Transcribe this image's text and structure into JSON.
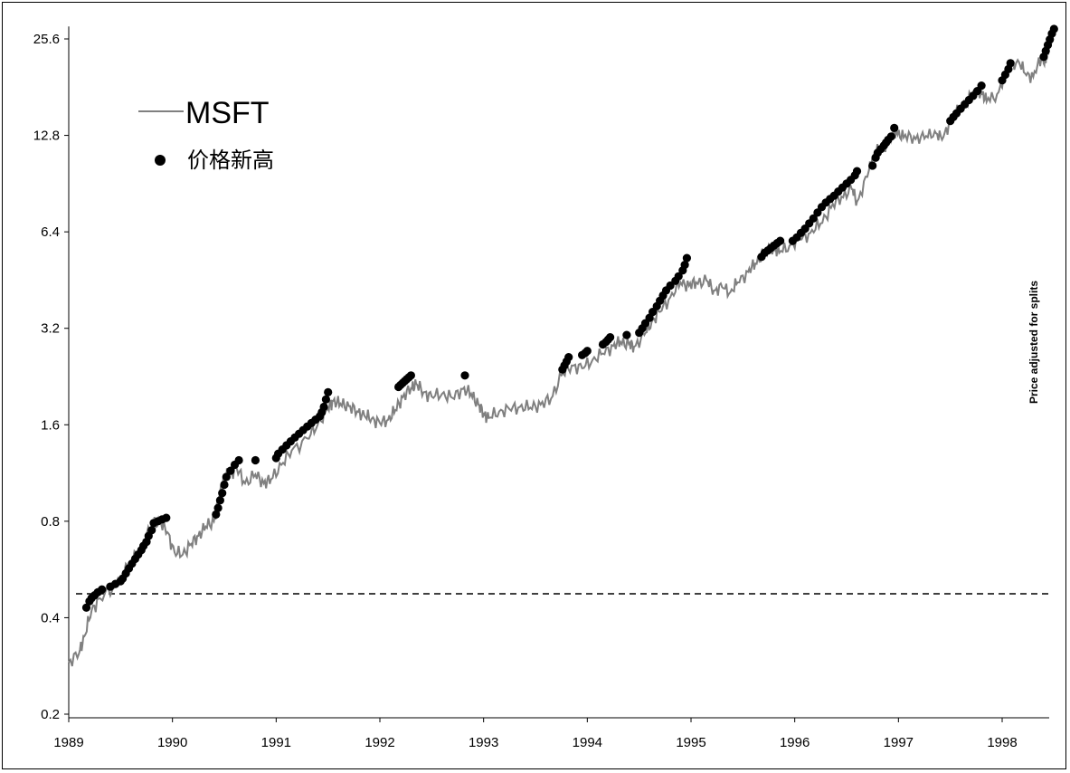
{
  "chart_data": {
    "type": "line",
    "y_scale": "log2",
    "ylim": [
      0.2,
      28
    ],
    "xlim": [
      1989.0,
      1998.55
    ],
    "x_ticks": [
      "1989",
      "1990",
      "1991",
      "1992",
      "1993",
      "1994",
      "1995",
      "1996",
      "1997",
      "1998"
    ],
    "y_ticks": [
      "0.2",
      "0.4",
      "0.8",
      "1.6",
      "3.2",
      "6.4",
      "12.8",
      "25.6"
    ],
    "reference_line": {
      "y": 0.475,
      "style": "dashed"
    },
    "side_annotation": "Price adjusted for splits",
    "legend": {
      "placement": "top-left",
      "series_label": "MSFT",
      "marker_label": "价格新高"
    },
    "colors": {
      "series": "#808080",
      "markers": "#000000",
      "axis": "#000000",
      "reference_line": "#000000"
    },
    "series": [
      {
        "name": "MSFT",
        "x": [
          1989.0,
          1989.1,
          1989.15,
          1989.22,
          1989.3,
          1989.45,
          1989.6,
          1989.7,
          1989.8,
          1989.88,
          1989.95,
          1990.02,
          1990.1,
          1990.18,
          1990.25,
          1990.32,
          1990.4,
          1990.45,
          1990.5,
          1990.55,
          1990.62,
          1990.7,
          1990.8,
          1990.88,
          1990.95,
          1991.05,
          1991.15,
          1991.3,
          1991.4,
          1991.5,
          1991.55,
          1991.62,
          1991.7,
          1991.78,
          1991.85,
          1991.92,
          1992.0,
          1992.08,
          1992.15,
          1992.22,
          1992.3,
          1992.35,
          1992.42,
          1992.5,
          1992.6,
          1992.7,
          1992.8,
          1992.88,
          1992.95,
          1993.0,
          1993.05,
          1993.15,
          1993.25,
          1993.35,
          1993.45,
          1993.55,
          1993.65,
          1993.75,
          1993.85,
          1993.95,
          1994.05,
          1994.15,
          1994.25,
          1994.32,
          1994.4,
          1994.45,
          1994.55,
          1994.62,
          1994.7,
          1994.8,
          1994.9,
          1994.98,
          1995.05,
          1995.15,
          1995.22,
          1995.3,
          1995.38,
          1995.45,
          1995.55,
          1995.62,
          1995.7,
          1995.8,
          1995.85,
          1995.95,
          1996.05,
          1996.15,
          1996.25,
          1996.35,
          1996.45,
          1996.55,
          1996.6,
          1996.7,
          1996.75,
          1996.82,
          1996.9,
          1996.98,
          1997.05,
          1997.15,
          1997.25,
          1997.35,
          1997.42,
          1997.5,
          1997.6,
          1997.7,
          1997.8,
          1997.85,
          1997.95,
          1998.05,
          1998.15,
          1998.22,
          1998.3,
          1998.38,
          1998.42,
          1998.45,
          1998.5
        ],
        "values": [
          0.29,
          0.31,
          0.35,
          0.42,
          0.46,
          0.5,
          0.6,
          0.66,
          0.78,
          0.8,
          0.74,
          0.64,
          0.63,
          0.68,
          0.72,
          0.77,
          0.8,
          0.95,
          1.1,
          1.12,
          1.17,
          1.05,
          1.12,
          1.05,
          1.08,
          1.2,
          1.33,
          1.45,
          1.6,
          1.8,
          1.9,
          1.86,
          1.83,
          1.76,
          1.71,
          1.67,
          1.62,
          1.66,
          1.78,
          1.95,
          2.08,
          2.15,
          2.02,
          1.96,
          2.0,
          1.94,
          2.07,
          2.0,
          1.85,
          1.73,
          1.68,
          1.76,
          1.79,
          1.82,
          1.81,
          1.85,
          1.93,
          2.28,
          2.45,
          2.4,
          2.55,
          2.67,
          2.82,
          2.9,
          2.86,
          2.8,
          3.05,
          3.35,
          3.6,
          4.0,
          4.45,
          4.35,
          4.45,
          4.5,
          4.2,
          4.3,
          4.15,
          4.45,
          4.8,
          5.1,
          5.5,
          5.75,
          5.5,
          5.8,
          6.05,
          6.35,
          6.8,
          7.6,
          8.25,
          8.7,
          7.95,
          9.5,
          11.0,
          11.6,
          12.2,
          13.2,
          12.6,
          12.7,
          12.5,
          13.2,
          12.4,
          14.2,
          15.6,
          17.0,
          17.7,
          16.3,
          17.2,
          20.5,
          22.0,
          20.0,
          19.5,
          22.5,
          21.5,
          24.6,
          27.0
        ]
      },
      {
        "name": "价格新高",
        "x": [
          1989.17,
          1989.2,
          1989.22,
          1989.25,
          1989.28,
          1989.32,
          1989.4,
          1989.45,
          1989.5,
          1989.52,
          1989.55,
          1989.58,
          1989.61,
          1989.64,
          1989.67,
          1989.7,
          1989.72,
          1989.75,
          1989.77,
          1989.8,
          1989.82,
          1989.86,
          1989.9,
          1989.94,
          1990.42,
          1990.44,
          1990.46,
          1990.48,
          1990.5,
          1990.52,
          1990.56,
          1990.6,
          1990.64,
          1990.8,
          1991.0,
          1991.02,
          1991.06,
          1991.1,
          1991.14,
          1991.18,
          1991.22,
          1991.26,
          1991.3,
          1991.34,
          1991.38,
          1991.42,
          1991.44,
          1991.46,
          1991.48,
          1991.5,
          1992.18,
          1992.2,
          1992.22,
          1992.24,
          1992.26,
          1992.28,
          1992.3,
          1992.82,
          1993.76,
          1993.78,
          1993.8,
          1993.82,
          1993.95,
          1993.98,
          1994.0,
          1994.15,
          1994.18,
          1994.2,
          1994.22,
          1994.38,
          1994.5,
          1994.53,
          1994.56,
          1994.6,
          1994.63,
          1994.67,
          1994.7,
          1994.73,
          1994.76,
          1994.8,
          1994.85,
          1994.88,
          1994.92,
          1994.94,
          1994.96,
          1995.68,
          1995.71,
          1995.74,
          1995.77,
          1995.8,
          1995.83,
          1995.86,
          1995.98,
          1996.02,
          1996.06,
          1996.1,
          1996.14,
          1996.18,
          1996.22,
          1996.26,
          1996.3,
          1996.34,
          1996.38,
          1996.42,
          1996.46,
          1996.5,
          1996.54,
          1996.58,
          1996.6,
          1996.75,
          1996.78,
          1996.8,
          1996.83,
          1996.86,
          1996.88,
          1996.9,
          1996.93,
          1996.96,
          1997.5,
          1997.53,
          1997.56,
          1997.6,
          1997.64,
          1997.68,
          1997.72,
          1997.76,
          1997.8,
          1998.0,
          1998.03,
          1998.06,
          1998.08,
          1998.4,
          1998.42,
          1998.44,
          1998.46,
          1998.48,
          1998.5
        ],
        "values": [
          0.43,
          0.45,
          0.46,
          0.47,
          0.48,
          0.49,
          0.5,
          0.51,
          0.52,
          0.53,
          0.55,
          0.57,
          0.59,
          0.61,
          0.63,
          0.65,
          0.67,
          0.69,
          0.72,
          0.75,
          0.79,
          0.8,
          0.81,
          0.82,
          0.84,
          0.88,
          0.93,
          0.98,
          1.04,
          1.1,
          1.15,
          1.2,
          1.24,
          1.24,
          1.26,
          1.3,
          1.34,
          1.38,
          1.42,
          1.46,
          1.5,
          1.54,
          1.58,
          1.62,
          1.66,
          1.7,
          1.75,
          1.82,
          1.92,
          2.02,
          2.1,
          2.13,
          2.16,
          2.19,
          2.22,
          2.25,
          2.28,
          2.28,
          2.38,
          2.45,
          2.52,
          2.6,
          2.64,
          2.68,
          2.72,
          2.85,
          2.9,
          2.95,
          3.0,
          3.05,
          3.1,
          3.2,
          3.32,
          3.45,
          3.6,
          3.75,
          3.9,
          4.05,
          4.2,
          4.35,
          4.5,
          4.65,
          4.85,
          5.05,
          5.3,
          5.35,
          5.5,
          5.6,
          5.7,
          5.8,
          5.9,
          6.0,
          6.0,
          6.15,
          6.35,
          6.55,
          6.8,
          7.05,
          7.35,
          7.65,
          7.9,
          8.1,
          8.3,
          8.55,
          8.8,
          9.05,
          9.3,
          9.6,
          9.9,
          10.3,
          10.9,
          11.3,
          11.6,
          11.9,
          12.15,
          12.4,
          12.7,
          13.5,
          14.2,
          14.6,
          15.0,
          15.5,
          16.0,
          16.5,
          17.0,
          17.6,
          18.3,
          19.0,
          19.8,
          20.6,
          21.5,
          22.5,
          23.5,
          24.5,
          25.5,
          26.6,
          27.5
        ]
      }
    ]
  }
}
